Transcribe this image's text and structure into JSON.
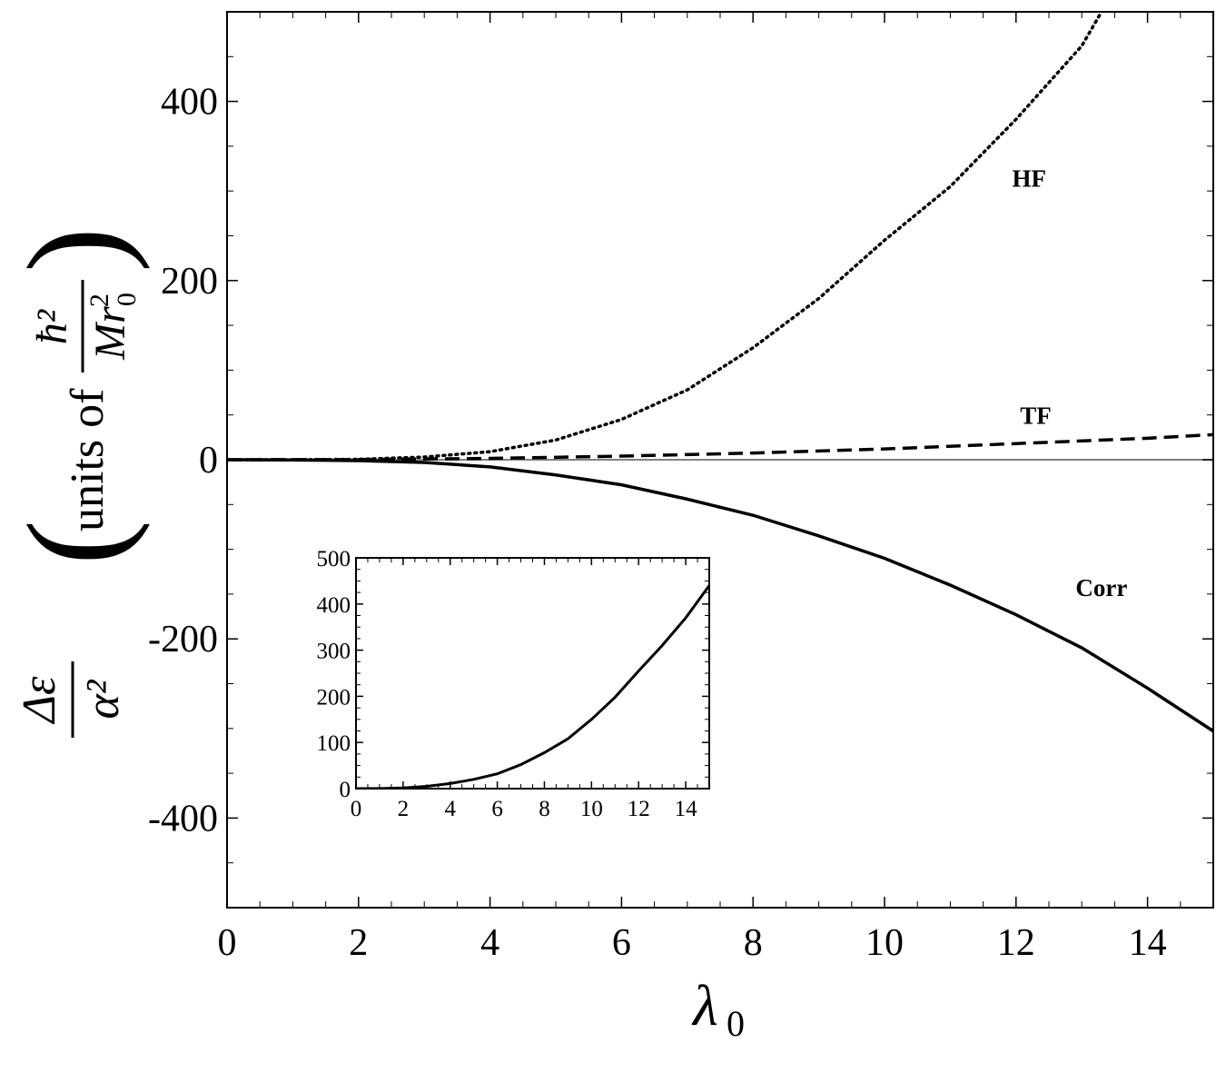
{
  "chart_data": [
    {
      "type": "line",
      "xlabel": "λ0",
      "ylabel": "Δε/α² (units of ħ²/(M r0²))",
      "ylabel_parts": {
        "numerator": "Δε",
        "denominator": "α²",
        "units_text": "units of",
        "units_numerator": "ħ²",
        "units_denominator": "Mr0²"
      },
      "xlim": [
        0,
        15
      ],
      "ylim": [
        -500,
        500
      ],
      "xticks": [
        0,
        2,
        4,
        6,
        8,
        10,
        12,
        14
      ],
      "yticks": [
        -400,
        -200,
        0,
        200,
        400
      ],
      "xtick_labels": [
        "0",
        "2",
        "4",
        "6",
        "8",
        "10",
        "12",
        "14"
      ],
      "ytick_labels": [
        "-400",
        "-200",
        "0",
        "200",
        "400"
      ],
      "reference_line": {
        "y": 0,
        "color": "#808080"
      },
      "series": [
        {
          "name": "HF",
          "style": "dotted",
          "color": "#000000",
          "x": [
            0,
            1,
            2,
            3,
            4,
            5,
            6,
            7,
            8,
            9,
            10,
            11,
            12,
            13,
            13.3
          ],
          "y": [
            0,
            0,
            0.5,
            3,
            9,
            22,
            45,
            78,
            125,
            180,
            245,
            305,
            380,
            462,
            500
          ]
        },
        {
          "name": "TF",
          "style": "dashed",
          "color": "#000000",
          "x": [
            0,
            2,
            4,
            6,
            8,
            10,
            12,
            14,
            15
          ],
          "y": [
            0,
            0.2,
            1.5,
            4,
            7.5,
            12,
            18,
            24,
            28
          ]
        },
        {
          "name": "Corr",
          "style": "solid",
          "color": "#000000",
          "x": [
            0,
            1,
            2,
            3,
            4,
            5,
            6,
            7,
            8,
            9,
            10,
            11,
            12,
            13,
            14,
            15
          ],
          "y": [
            0,
            -0.2,
            -1,
            -3,
            -8,
            -17,
            -28,
            -44,
            -62,
            -85,
            -110,
            -140,
            -173,
            -210,
            -255,
            -303
          ]
        }
      ],
      "annotations": [
        {
          "text": "HF",
          "x": 12.2,
          "y": 305
        },
        {
          "text": "TF",
          "x": 12.3,
          "y": 40
        },
        {
          "text": "Corr",
          "x": 13.3,
          "y": -152
        }
      ]
    },
    {
      "type": "line",
      "xlabel": "",
      "ylabel": "",
      "xlim": [
        0,
        15
      ],
      "ylim": [
        0,
        500
      ],
      "xticks": [
        0,
        2,
        4,
        6,
        8,
        10,
        12,
        14
      ],
      "yticks": [
        0,
        100,
        200,
        300,
        400,
        500
      ],
      "xtick_labels": [
        "0",
        "2",
        "4",
        "6",
        "8",
        "10",
        "12",
        "14"
      ],
      "ytick_labels": [
        "0",
        "100",
        "200",
        "300",
        "400",
        "500"
      ],
      "series": [
        {
          "style": "solid",
          "color": "#000000",
          "x": [
            0,
            1,
            2,
            3,
            4,
            5,
            6,
            7,
            8,
            9,
            10,
            11,
            12,
            13,
            14,
            15
          ],
          "y": [
            0,
            0.3,
            1.5,
            5,
            11,
            20,
            32,
            52,
            78,
            108,
            150,
            198,
            255,
            310,
            370,
            440
          ]
        }
      ]
    }
  ]
}
